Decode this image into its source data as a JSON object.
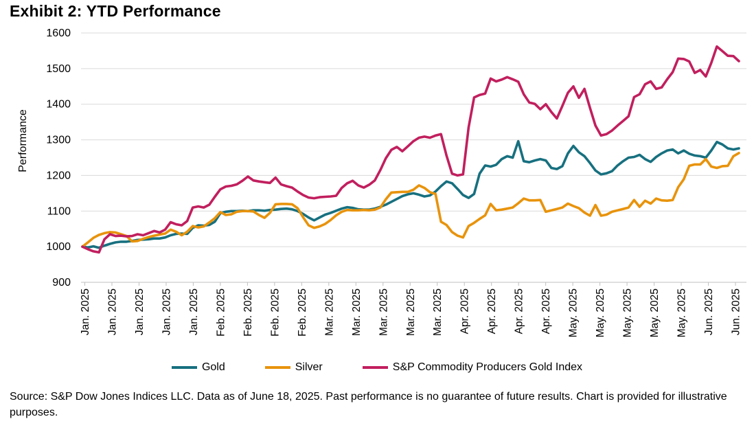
{
  "title": "Exhibit 2: YTD Performance",
  "y_axis_title": "Performance",
  "source_note": "Source: S&P Dow Jones Indices LLC. Data as of June 18, 2025. Past performance is no guarantee of future results. Chart is provided for illustrative purposes.",
  "colors": {
    "gold_line": "#17707F",
    "silver_line": "#E8930C",
    "index_line": "#C11F5E",
    "gridline": "#D9D9D9",
    "axis": "#BFBFBF",
    "text": "#000000"
  },
  "chart_data": {
    "type": "line",
    "title": "Exhibit 2: YTD Performance",
    "xlabel": "",
    "ylabel": "Performance",
    "ylim": [
      900,
      1600
    ],
    "ytick_interval": 100,
    "yticks": [
      900,
      1000,
      1100,
      1200,
      1300,
      1400,
      1500,
      1600
    ],
    "grid": "horizontal",
    "legend_position": "bottom",
    "xticklabels": [
      "Jan. 2025",
      "Jan. 2025",
      "Jan. 2025",
      "Jan. 2025",
      "Jan. 2025",
      "Feb. 2025",
      "Feb. 2025",
      "Feb. 2025",
      "Feb. 2025",
      "Mar. 2025",
      "Mar. 2025",
      "Mar. 2025",
      "Mar. 2025",
      "Mar. 2025",
      "Apr. 2025",
      "Apr. 2025",
      "Apr. 2025",
      "Apr. 2025",
      "May. 2025",
      "May. 2025",
      "May. 2025",
      "May. 2025",
      "May. 2025",
      "Jun. 2025",
      "Jun. 2025"
    ],
    "series": [
      {
        "name": "Gold",
        "color": "#17707F",
        "values": [
          1000,
          998,
          1001,
          997,
          1003,
          1008,
          1012,
          1014,
          1014,
          1016,
          1019,
          1020,
          1021,
          1023,
          1023,
          1026,
          1032,
          1036,
          1037,
          1036,
          1053,
          1060,
          1059,
          1061,
          1070,
          1094,
          1098,
          1100,
          1100,
          1101,
          1100,
          1102,
          1102,
          1101,
          1103,
          1104,
          1106,
          1107,
          1105,
          1100,
          1092,
          1082,
          1074,
          1082,
          1090,
          1095,
          1101,
          1107,
          1111,
          1109,
          1105,
          1104,
          1104,
          1107,
          1112,
          1118,
          1126,
          1134,
          1142,
          1147,
          1150,
          1146,
          1141,
          1144,
          1155,
          1170,
          1183,
          1178,
          1162,
          1145,
          1137,
          1148,
          1205,
          1228,
          1225,
          1230,
          1246,
          1254,
          1250,
          1296,
          1240,
          1237,
          1242,
          1246,
          1242,
          1221,
          1218,
          1226,
          1262,
          1283,
          1265,
          1254,
          1235,
          1214,
          1203,
          1206,
          1212,
          1228,
          1240,
          1250,
          1252,
          1258,
          1246,
          1238,
          1252,
          1262,
          1270,
          1273,
          1262,
          1270,
          1261,
          1256,
          1254,
          1250,
          1270,
          1294,
          1287,
          1276,
          1273,
          1276
        ]
      },
      {
        "name": "Silver",
        "color": "#E8930C",
        "values": [
          1000,
          1012,
          1025,
          1033,
          1038,
          1041,
          1040,
          1035,
          1030,
          1015,
          1016,
          1022,
          1027,
          1031,
          1034,
          1037,
          1048,
          1042,
          1032,
          1042,
          1058,
          1054,
          1057,
          1068,
          1080,
          1097,
          1089,
          1091,
          1098,
          1100,
          1100,
          1099,
          1089,
          1081,
          1095,
          1119,
          1120,
          1120,
          1119,
          1108,
          1083,
          1060,
          1053,
          1057,
          1064,
          1075,
          1088,
          1098,
          1103,
          1102,
          1102,
          1103,
          1102,
          1104,
          1110,
          1133,
          1152,
          1153,
          1154,
          1154,
          1160,
          1172,
          1165,
          1153,
          1148,
          1070,
          1061,
          1041,
          1031,
          1026,
          1058,
          1067,
          1078,
          1088,
          1120,
          1102,
          1104,
          1107,
          1110,
          1122,
          1135,
          1130,
          1130,
          1131,
          1098,
          1102,
          1106,
          1110,
          1121,
          1114,
          1108,
          1096,
          1087,
          1117,
          1087,
          1090,
          1098,
          1102,
          1106,
          1110,
          1131,
          1112,
          1129,
          1121,
          1135,
          1130,
          1129,
          1131,
          1167,
          1189,
          1227,
          1231,
          1231,
          1246,
          1225,
          1221,
          1226,
          1227,
          1254,
          1263
        ]
      },
      {
        "name": "S&P Commodity Producers Gold Index",
        "color": "#C11F5E",
        "values": [
          1000,
          993,
          987,
          984,
          1021,
          1035,
          1030,
          1031,
          1029,
          1030,
          1035,
          1032,
          1038,
          1044,
          1040,
          1048,
          1069,
          1063,
          1060,
          1072,
          1110,
          1113,
          1110,
          1118,
          1140,
          1161,
          1169,
          1171,
          1175,
          1185,
          1197,
          1186,
          1183,
          1181,
          1179,
          1194,
          1175,
          1170,
          1166,
          1155,
          1145,
          1138,
          1136,
          1139,
          1140,
          1141,
          1143,
          1165,
          1178,
          1185,
          1172,
          1166,
          1174,
          1186,
          1215,
          1248,
          1272,
          1280,
          1268,
          1282,
          1296,
          1306,
          1309,
          1306,
          1312,
          1316,
          1256,
          1205,
          1200,
          1203,
          1335,
          1419,
          1426,
          1430,
          1472,
          1464,
          1469,
          1476,
          1470,
          1463,
          1428,
          1405,
          1401,
          1386,
          1400,
          1378,
          1360,
          1395,
          1432,
          1450,
          1418,
          1443,
          1390,
          1340,
          1312,
          1316,
          1326,
          1340,
          1353,
          1366,
          1420,
          1428,
          1456,
          1464,
          1443,
          1447,
          1470,
          1490,
          1528,
          1527,
          1520,
          1488,
          1496,
          1478,
          1516,
          1562,
          1549,
          1536,
          1535,
          1521
        ]
      }
    ]
  }
}
